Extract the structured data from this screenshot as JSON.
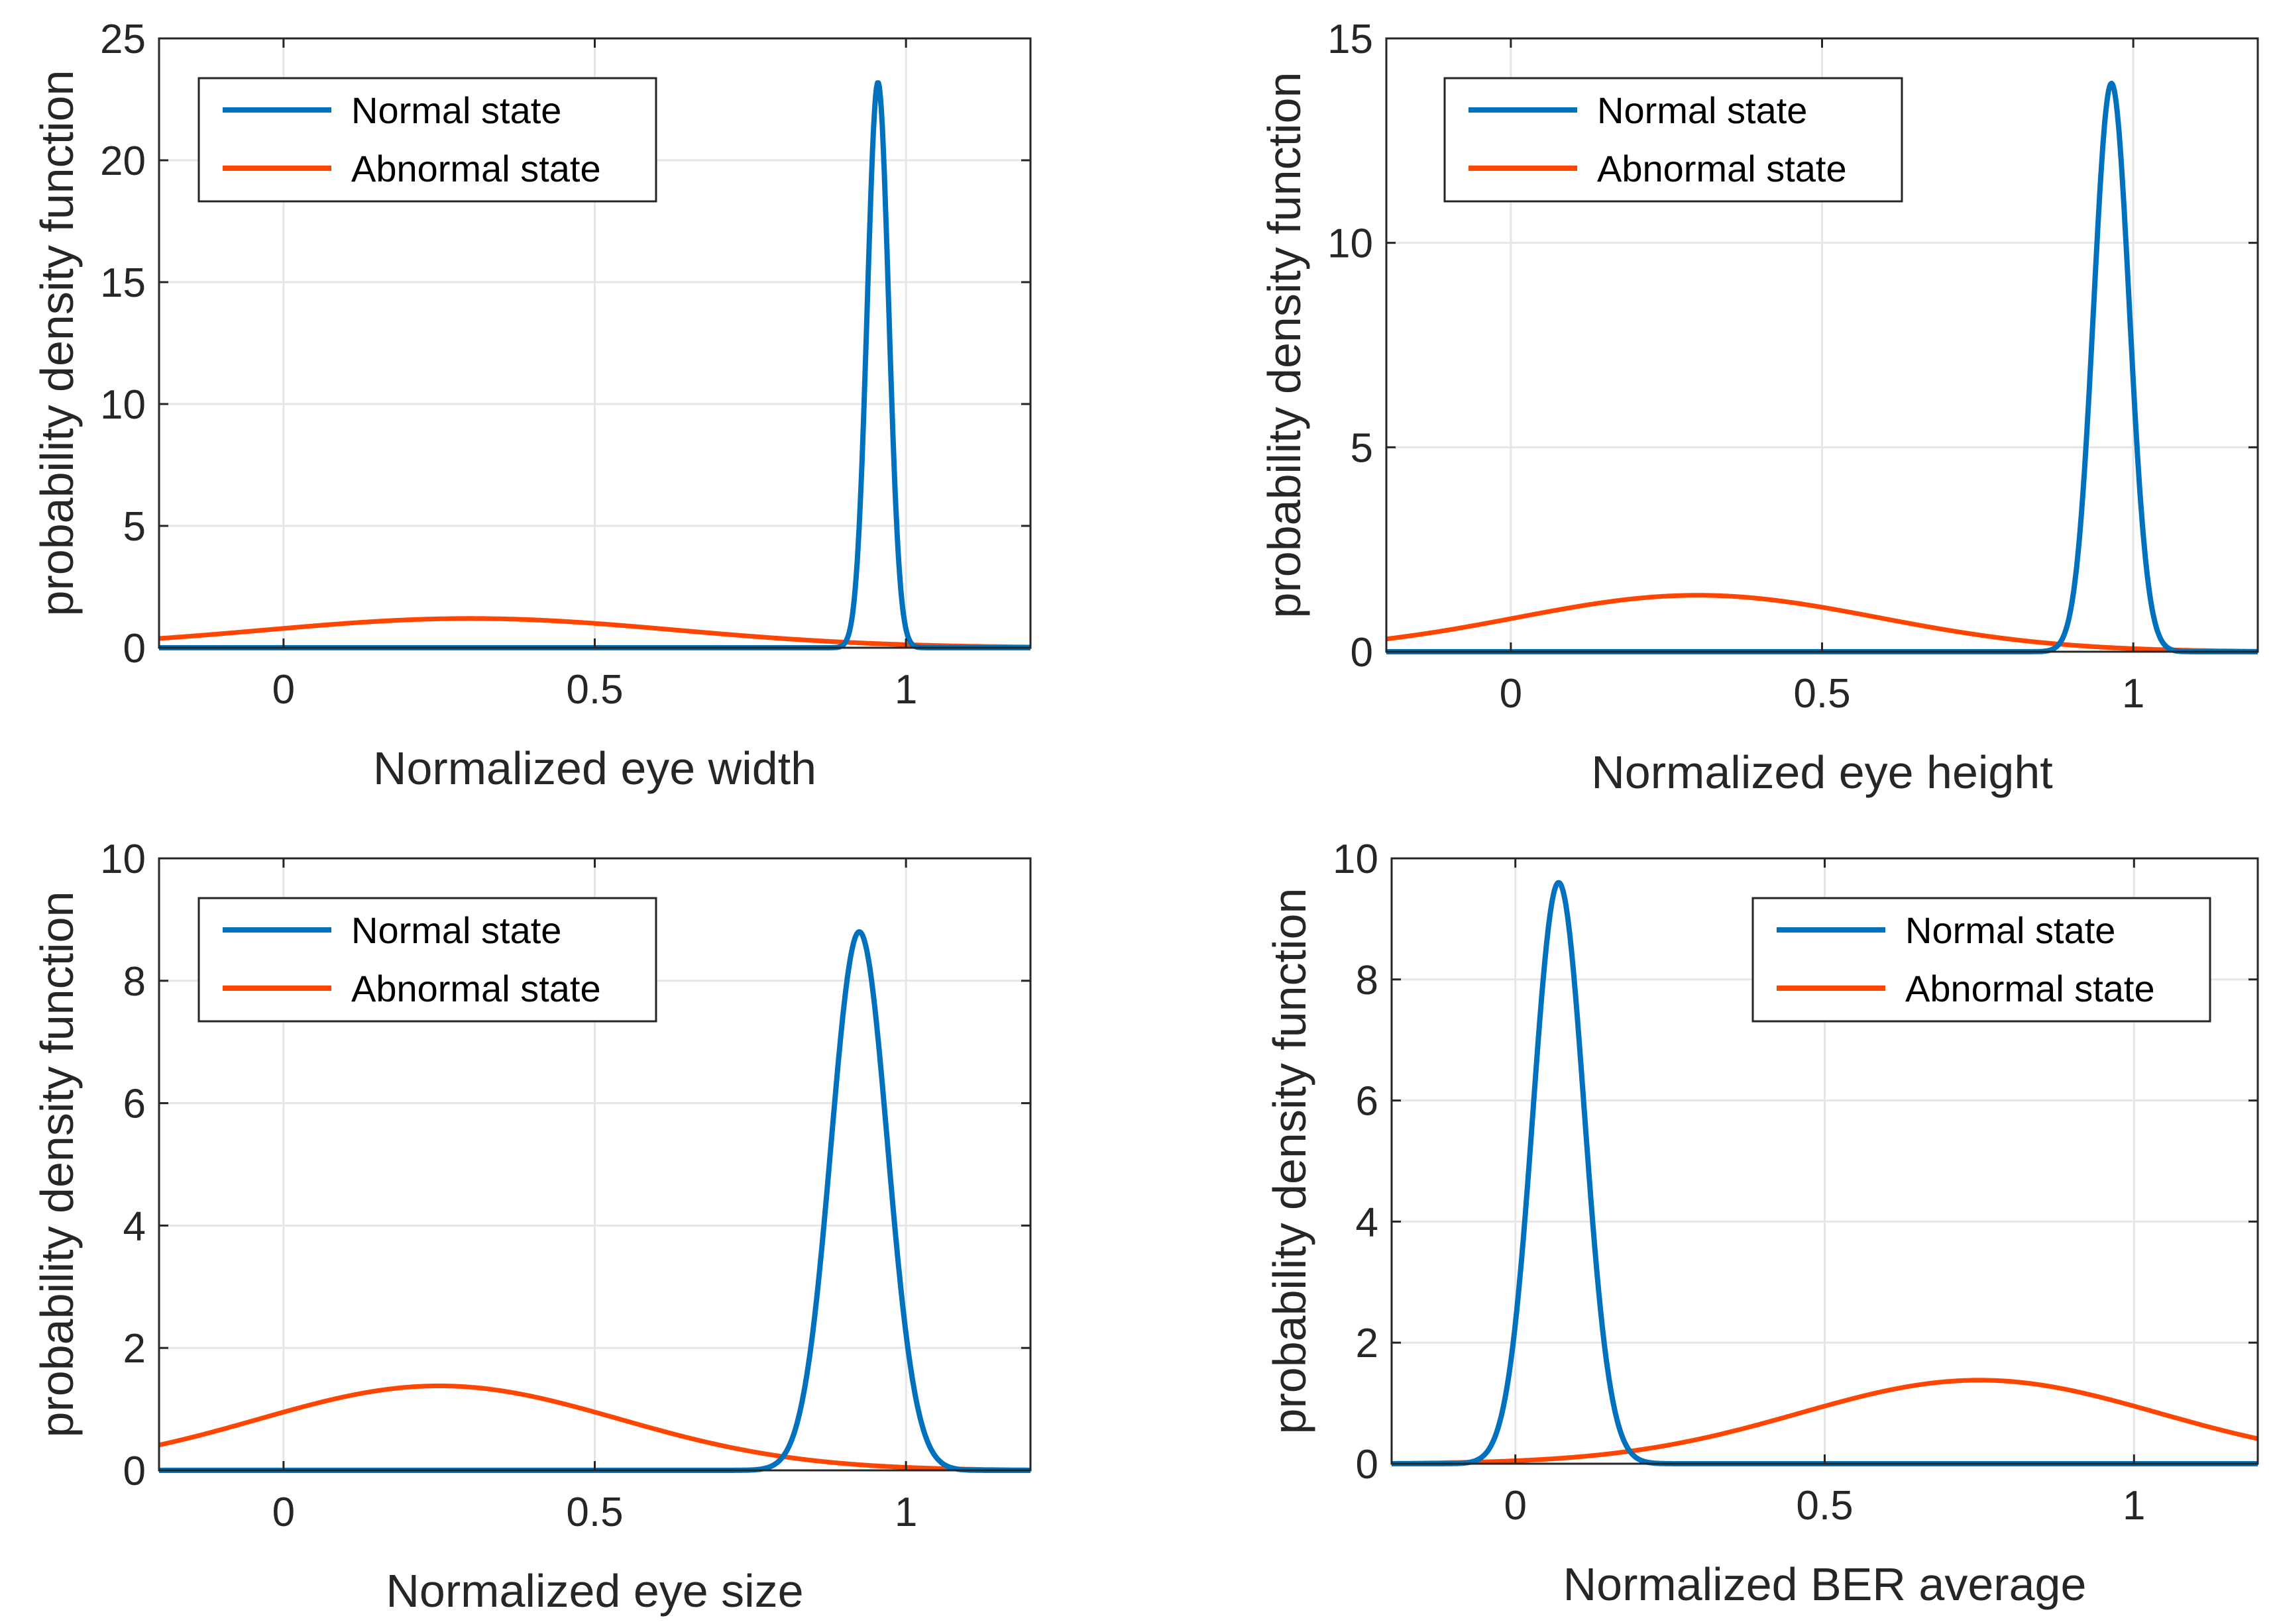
{
  "colors": {
    "normal": "#0072BD",
    "abnormal": "#FF4500",
    "axis": "#262626",
    "grid": "#E6E6E6"
  },
  "chart_data": [
    {
      "type": "line",
      "xlabel": "Normalized eye width",
      "ylabel": "probability density function",
      "xlim": [
        -0.2,
        1.2
      ],
      "ylim": [
        0,
        25
      ],
      "xticks": [
        0,
        0.5,
        1
      ],
      "xtick_labels": [
        "0",
        "0.5",
        "1"
      ],
      "yticks": [
        0,
        5,
        10,
        15,
        20,
        25
      ],
      "ytick_labels": [
        "0",
        "5",
        "10",
        "15",
        "20",
        "25"
      ],
      "grid": true,
      "legend": {
        "position": "top-left",
        "entries": [
          "Normal state",
          "Abnormal state"
        ]
      },
      "series": [
        {
          "name": "Normal state",
          "kind": "gaussian",
          "mean": 0.955,
          "sd": 0.0172,
          "peak": 23.2
        },
        {
          "name": "Abnormal state",
          "kind": "gaussian",
          "mean": 0.3,
          "sd": 0.33,
          "peak": 1.2
        }
      ]
    },
    {
      "type": "line",
      "xlabel": "Normalized eye height",
      "ylabel": "probability density function",
      "xlim": [
        -0.2,
        1.2
      ],
      "ylim": [
        0,
        15
      ],
      "xticks": [
        0,
        0.5,
        1
      ],
      "xtick_labels": [
        "0",
        "0.5",
        "1"
      ],
      "yticks": [
        0,
        5,
        10,
        15
      ],
      "ytick_labels": [
        "0",
        "5",
        "10",
        "15"
      ],
      "grid": true,
      "legend": {
        "position": "top-left",
        "entries": [
          "Normal state",
          "Abnormal state"
        ]
      },
      "series": [
        {
          "name": "Normal state",
          "kind": "gaussian",
          "mean": 0.965,
          "sd": 0.0287,
          "peak": 13.9
        },
        {
          "name": "Abnormal state",
          "kind": "gaussian",
          "mean": 0.3,
          "sd": 0.29,
          "peak": 1.38
        }
      ]
    },
    {
      "type": "line",
      "xlabel": "Normalized eye size",
      "ylabel": "probability density function",
      "xlim": [
        -0.2,
        1.2
      ],
      "ylim": [
        0,
        10
      ],
      "xticks": [
        0,
        0.5,
        1
      ],
      "xtick_labels": [
        "0",
        "0.5",
        "1"
      ],
      "yticks": [
        0,
        2,
        4,
        6,
        8,
        10
      ],
      "ytick_labels": [
        "0",
        "2",
        "4",
        "6",
        "8",
        "10"
      ],
      "grid": true,
      "legend": {
        "position": "top-left",
        "entries": [
          "Normal state",
          "Abnormal state"
        ]
      },
      "series": [
        {
          "name": "Normal state",
          "kind": "gaussian",
          "mean": 0.925,
          "sd": 0.0453,
          "peak": 8.8
        },
        {
          "name": "Abnormal state",
          "kind": "gaussian",
          "mean": 0.25,
          "sd": 0.29,
          "peak": 1.38
        }
      ]
    },
    {
      "type": "line",
      "xlabel": "Normalized BER average",
      "ylabel": "probability density function",
      "xlim": [
        -0.2,
        1.2
      ],
      "ylim": [
        0,
        10
      ],
      "xticks": [
        0,
        0.5,
        1
      ],
      "xtick_labels": [
        "0",
        "0.5",
        "1"
      ],
      "yticks": [
        0,
        2,
        4,
        6,
        8,
        10
      ],
      "ytick_labels": [
        "0",
        "2",
        "4",
        "6",
        "8",
        "10"
      ],
      "grid": true,
      "legend": {
        "position": "top-right",
        "entries": [
          "Normal state",
          "Abnormal state"
        ]
      },
      "series": [
        {
          "name": "Normal state",
          "kind": "gaussian",
          "mean": 0.07,
          "sd": 0.0415,
          "peak": 9.6
        },
        {
          "name": "Abnormal state",
          "kind": "gaussian",
          "mean": 0.75,
          "sd": 0.29,
          "peak": 1.38
        }
      ]
    }
  ]
}
